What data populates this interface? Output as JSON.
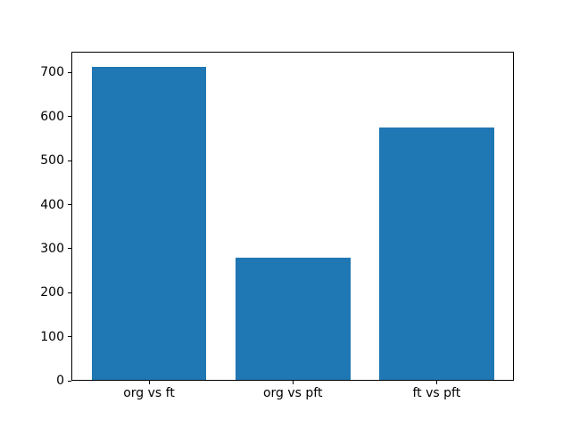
{
  "chart_data": {
    "type": "bar",
    "categories": [
      "org vs ft",
      "org vs pft",
      "ft vs pft"
    ],
    "values": [
      712,
      280,
      575
    ],
    "title": "",
    "xlabel": "",
    "ylabel": "",
    "ylim": [
      0,
      748
    ],
    "yticks": [
      0,
      100,
      200,
      300,
      400,
      500,
      600,
      700
    ],
    "bar_color": "#1f77b4",
    "bar_width_fraction": 0.8,
    "grid": false,
    "legend": null,
    "background_color": "#ffffff",
    "spine_color": "#000000",
    "tick_label_color": "#000000"
  }
}
